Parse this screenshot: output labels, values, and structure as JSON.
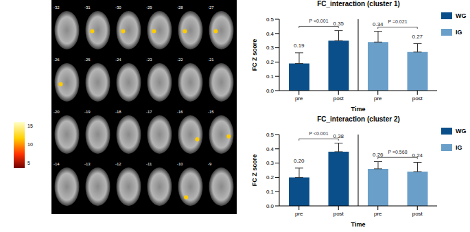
{
  "montage": {
    "slice_labels": [
      [
        -32,
        -31,
        -30,
        -29,
        -28,
        -27
      ],
      [
        -26,
        -25,
        -24,
        -23,
        -22,
        -21
      ],
      [
        -20,
        -19,
        -18,
        -17,
        -16,
        -15
      ],
      [
        -14,
        -13,
        -12,
        -11,
        -10,
        -9
      ]
    ],
    "colorbar": {
      "range": [
        3.5,
        16
      ],
      "ticks": [
        5,
        10,
        15
      ]
    }
  },
  "chart_data": [
    {
      "type": "bar",
      "title": "FC_interaction (cluster 1)",
      "x_label": "Time",
      "y_label": "FC Z score",
      "categories": [
        "pre",
        "post",
        "pre",
        "post"
      ],
      "ylim": [
        0,
        0.5
      ],
      "yticks": [
        {
          "value": 0,
          "label": "0.0"
        },
        0.1,
        0.2,
        0.3,
        0.4,
        0.5
      ],
      "data_labels": true,
      "legend": "right",
      "series": [
        {
          "name": "WG",
          "color": "#0b4f8a",
          "values": [
            0.19,
            0.35,
            null,
            null
          ],
          "value_labels": [
            "0.19",
            "0.35",
            null,
            null
          ],
          "errors": [
            0.075,
            0.07,
            null,
            null
          ],
          "annotation": "P <0.001"
        },
        {
          "name": "IG",
          "color": "#6a9fc9",
          "values": [
            null,
            null,
            0.34,
            0.27
          ],
          "value_labels": [
            null,
            null,
            "0.34",
            "0.27"
          ],
          "errors": [
            null,
            null,
            0.075,
            0.06
          ],
          "annotation": "P =0.021"
        }
      ]
    },
    {
      "type": "bar",
      "title": "FC_interaction (cluster 2)",
      "x_label": "Time",
      "y_label": "FC Z score",
      "categories": [
        "pre",
        "post",
        "pre",
        "post"
      ],
      "ylim": [
        0,
        0.5
      ],
      "yticks": [
        {
          "value": 0,
          "label": "0.0"
        },
        0.1,
        0.2,
        0.3,
        0.4,
        0.5
      ],
      "data_labels": true,
      "legend": "right",
      "series": [
        {
          "name": "WG",
          "color": "#0b4f8a",
          "values": [
            0.2,
            0.38,
            null,
            null
          ],
          "value_labels": [
            "0.20",
            "0.38",
            null,
            null
          ],
          "errors": [
            0.065,
            0.06,
            null,
            null
          ],
          "annotation": "P <0.001"
        },
        {
          "name": "IG",
          "color": "#6a9fc9",
          "values": [
            null,
            null,
            0.26,
            0.24
          ],
          "value_labels": [
            null,
            null,
            "0.26",
            "0.24"
          ],
          "errors": [
            null,
            null,
            0.05,
            0.065
          ],
          "annotation": "P =0.568"
        }
      ]
    }
  ]
}
